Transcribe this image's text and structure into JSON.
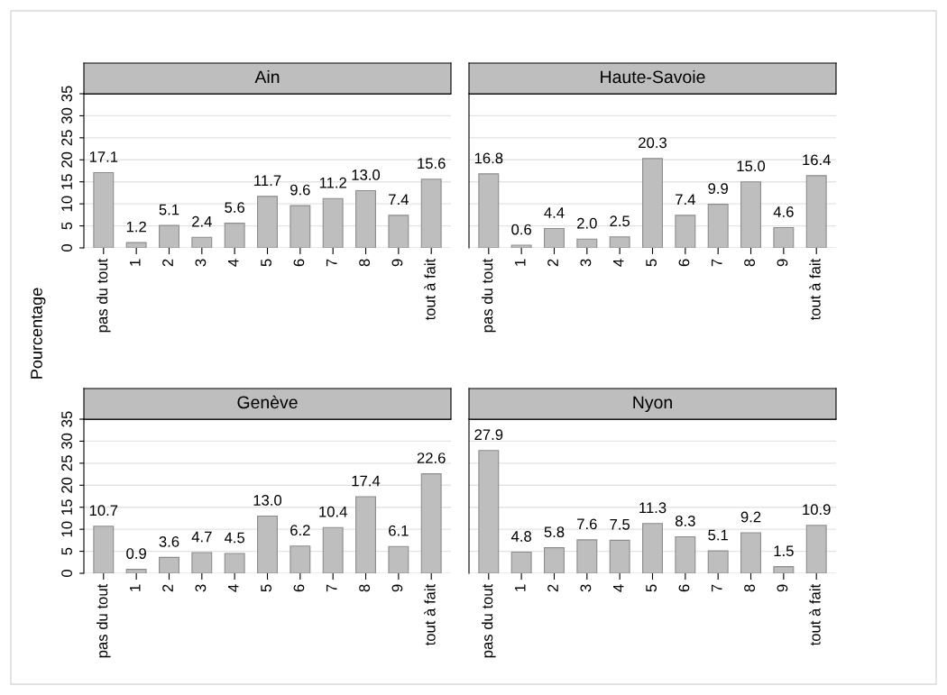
{
  "chart_data": [
    {
      "type": "bar",
      "title": "Ain",
      "ylabel": "Pourcentage",
      "categories": [
        "pas du tout",
        "1",
        "2",
        "3",
        "4",
        "5",
        "6",
        "7",
        "8",
        "9",
        "tout à fait"
      ],
      "values": [
        17.1,
        1.2,
        5.1,
        2.4,
        5.6,
        11.7,
        9.6,
        11.2,
        13.0,
        7.4,
        15.6
      ],
      "color": "#bebebe",
      "ylim": [
        0,
        35
      ],
      "yticks": [
        0,
        5,
        10,
        15,
        20,
        25,
        30,
        35
      ],
      "grid": "y",
      "data_labels": true,
      "value_labels": [
        "17.1",
        "1.2",
        "5.1",
        "2.4",
        "5.6",
        "11.7",
        "9.6",
        "11.2",
        "13.0",
        "7.4",
        "15.6"
      ]
    },
    {
      "type": "bar",
      "title": "Haute-Savoie",
      "categories": [
        "pas du tout",
        "1",
        "2",
        "3",
        "4",
        "5",
        "6",
        "7",
        "8",
        "9",
        "tout à fait"
      ],
      "values": [
        16.8,
        0.6,
        4.4,
        2.0,
        2.5,
        20.3,
        7.4,
        9.9,
        15.0,
        4.6,
        16.4
      ],
      "color": "#bebebe",
      "ylim": [
        0,
        35
      ],
      "yticks": [
        0,
        5,
        10,
        15,
        20,
        25,
        30,
        35
      ],
      "grid": "y",
      "data_labels": true,
      "value_labels": [
        "16.8",
        "0.6",
        "4.4",
        "2.0",
        "2.5",
        "20.3",
        "7.4",
        "9.9",
        "15.0",
        "4.6",
        "16.4"
      ],
      "tick_labels": "x"
    },
    {
      "type": "bar",
      "title": "Genève",
      "categories": [
        "pas du tout",
        "1",
        "2",
        "3",
        "4",
        "5",
        "6",
        "7",
        "8",
        "9",
        "tout à fait"
      ],
      "values": [
        10.7,
        0.9,
        3.6,
        4.7,
        4.5,
        13.0,
        6.2,
        10.4,
        17.4,
        6.1,
        22.6
      ],
      "color": "#bebebe",
      "ylim": [
        0,
        35
      ],
      "yticks": [
        0,
        5,
        10,
        15,
        20,
        25,
        30,
        35
      ],
      "grid": "y",
      "data_labels": true,
      "value_labels": [
        "10.7",
        "0.9",
        "3.6",
        "4.7",
        "4.5",
        "13.0",
        "6.2",
        "10.4",
        "17.4",
        "6.1",
        "22.6"
      ]
    },
    {
      "type": "bar",
      "title": "Nyon",
      "categories": [
        "pas du tout",
        "1",
        "2",
        "3",
        "4",
        "5",
        "6",
        "7",
        "8",
        "9",
        "tout à fait"
      ],
      "values": [
        27.9,
        4.8,
        5.8,
        7.6,
        7.5,
        11.3,
        8.3,
        5.1,
        9.2,
        1.5,
        10.9
      ],
      "color": "#bebebe",
      "ylim": [
        0,
        35
      ],
      "yticks": [
        0,
        5,
        10,
        15,
        20,
        25,
        30,
        35
      ],
      "grid": "y",
      "data_labels": true,
      "value_labels": [
        "27.9",
        "4.8",
        "5.8",
        "7.6",
        "7.5",
        "11.3",
        "8.3",
        "5.1",
        "9.2",
        "1.5",
        "10.9"
      ],
      "tick_labels": "x"
    }
  ]
}
